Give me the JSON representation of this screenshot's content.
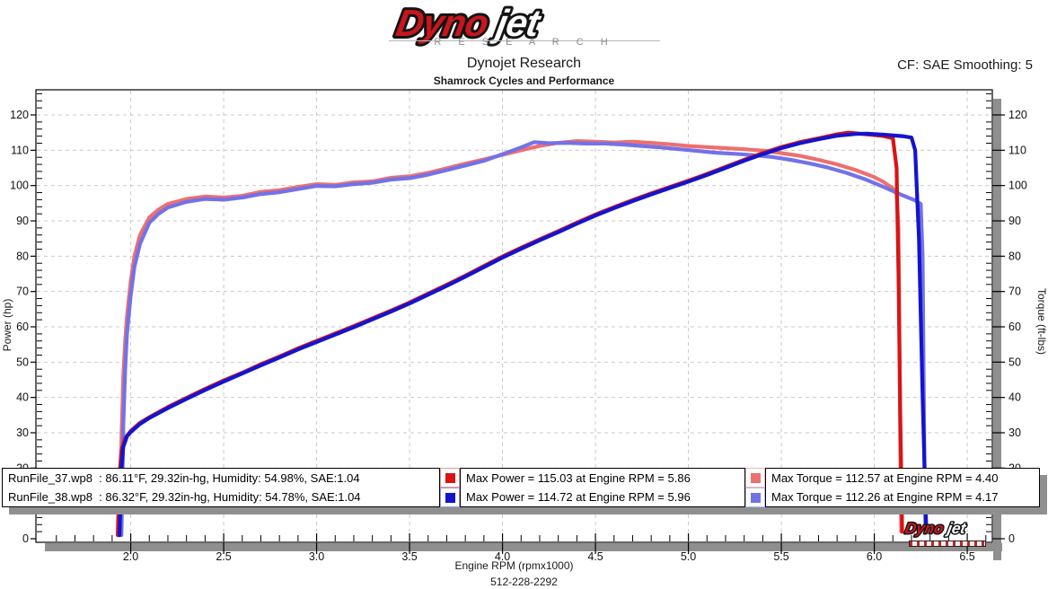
{
  "header": {
    "logo_word_primary": "Dyno",
    "logo_word_secondary": "jet",
    "logo_research": "R E S E A R C H",
    "title": "Dynojet Research",
    "subtitle": "Shamrock Cycles and Performance",
    "cf_label": "CF: SAE Smoothing: 5"
  },
  "colors": {
    "power_run1": "#d81414",
    "power_run2": "#1414cf",
    "torque_run1": "#ee6f6f",
    "torque_run2": "#7272e8",
    "grid": "#c9c9c9",
    "shadow": "#8f8f8f",
    "axis": "#000000",
    "logo_red": "#c8161d"
  },
  "chart_data": {
    "type": "line",
    "title": "Dynojet Research",
    "subtitle": "Shamrock Cycles and Performance",
    "xlabel": "Engine RPM (rpmx1000)",
    "ylabel_left": "Power (hp)",
    "ylabel_right": "Torque (ft-lbs)",
    "xlim": [
      1.5,
      6.65
    ],
    "ylim": [
      0,
      127
    ],
    "x_ticks": [
      2.0,
      2.5,
      3.0,
      3.5,
      4.0,
      4.5,
      5.0,
      5.5,
      6.0,
      6.5
    ],
    "x_tick_labels": [
      "2.0",
      "2.5",
      "3.0",
      "3.5",
      "4.0",
      "4.5",
      "5.0",
      "5.5",
      "6.0",
      "6.5"
    ],
    "y_ticks": [
      0,
      10,
      20,
      30,
      40,
      50,
      60,
      70,
      80,
      90,
      100,
      110,
      120
    ],
    "x_minor_step": 0.1,
    "y_minor_step": 2,
    "grid": "dashed",
    "legend_position": "bottom",
    "series": [
      {
        "name": "Torque RunFile_37",
        "axis": "right",
        "units": "ft-lbs",
        "color": "#ee6f6f",
        "max": {
          "value": 112.57,
          "rpm": 4.4
        },
        "points": [
          [
            1.94,
            1
          ],
          [
            1.945,
            12
          ],
          [
            1.95,
            28
          ],
          [
            1.96,
            46
          ],
          [
            1.97,
            56
          ],
          [
            1.98,
            63
          ],
          [
            2.0,
            73
          ],
          [
            2.02,
            80
          ],
          [
            2.05,
            86
          ],
          [
            2.1,
            91
          ],
          [
            2.15,
            93.2
          ],
          [
            2.2,
            94.8
          ],
          [
            2.3,
            96.2
          ],
          [
            2.4,
            96.9
          ],
          [
            2.5,
            96.6
          ],
          [
            2.6,
            97.1
          ],
          [
            2.7,
            98.2
          ],
          [
            2.8,
            98.7
          ],
          [
            2.9,
            99.6
          ],
          [
            3.0,
            100.4
          ],
          [
            3.1,
            100.2
          ],
          [
            3.2,
            100.9
          ],
          [
            3.3,
            101.2
          ],
          [
            3.4,
            102.2
          ],
          [
            3.5,
            102.6
          ],
          [
            3.6,
            103.6
          ],
          [
            3.7,
            104.9
          ],
          [
            3.8,
            106.2
          ],
          [
            3.9,
            107.4
          ],
          [
            4.0,
            108.7
          ],
          [
            4.1,
            110.0
          ],
          [
            4.2,
            111.2
          ],
          [
            4.3,
            112.1
          ],
          [
            4.4,
            112.6
          ],
          [
            4.5,
            112.4
          ],
          [
            4.6,
            112.2
          ],
          [
            4.7,
            112.4
          ],
          [
            4.8,
            112.1
          ],
          [
            4.9,
            111.7
          ],
          [
            5.0,
            111.2
          ],
          [
            5.1,
            110.9
          ],
          [
            5.2,
            110.6
          ],
          [
            5.3,
            110.3
          ],
          [
            5.4,
            109.9
          ],
          [
            5.5,
            109.2
          ],
          [
            5.6,
            108.4
          ],
          [
            5.7,
            107.3
          ],
          [
            5.8,
            106.0
          ],
          [
            5.9,
            104.4
          ],
          [
            6.0,
            102.4
          ],
          [
            6.05,
            101.0
          ],
          [
            6.1,
            99.2
          ],
          [
            6.12,
            97.5
          ],
          [
            6.13,
            88
          ],
          [
            6.135,
            60
          ],
          [
            6.14,
            25
          ],
          [
            6.145,
            2
          ]
        ]
      },
      {
        "name": "Torque RunFile_38",
        "axis": "right",
        "units": "ft-lbs",
        "color": "#7272e8",
        "max": {
          "value": 112.26,
          "rpm": 4.17
        },
        "points": [
          [
            1.95,
            1
          ],
          [
            1.955,
            14
          ],
          [
            1.96,
            32
          ],
          [
            1.97,
            48
          ],
          [
            1.98,
            58
          ],
          [
            2.0,
            69
          ],
          [
            2.02,
            77
          ],
          [
            2.05,
            83.5
          ],
          [
            2.1,
            89.5
          ],
          [
            2.15,
            92
          ],
          [
            2.2,
            93.8
          ],
          [
            2.3,
            95.4
          ],
          [
            2.4,
            96.2
          ],
          [
            2.5,
            96.0
          ],
          [
            2.6,
            96.6
          ],
          [
            2.7,
            97.6
          ],
          [
            2.8,
            98.1
          ],
          [
            2.9,
            99.0
          ],
          [
            3.0,
            99.9
          ],
          [
            3.1,
            99.8
          ],
          [
            3.2,
            100.4
          ],
          [
            3.3,
            100.8
          ],
          [
            3.4,
            101.7
          ],
          [
            3.5,
            102.1
          ],
          [
            3.6,
            103.1
          ],
          [
            3.7,
            104.4
          ],
          [
            3.8,
            105.7
          ],
          [
            3.9,
            107.0
          ],
          [
            4.0,
            108.9
          ],
          [
            4.1,
            110.8
          ],
          [
            4.17,
            112.3
          ],
          [
            4.25,
            112.0
          ],
          [
            4.35,
            112.1
          ],
          [
            4.45,
            111.9
          ],
          [
            4.55,
            111.9
          ],
          [
            4.65,
            111.6
          ],
          [
            4.75,
            111.2
          ],
          [
            4.85,
            110.8
          ],
          [
            4.95,
            110.3
          ],
          [
            5.05,
            109.8
          ],
          [
            5.15,
            109.3
          ],
          [
            5.25,
            109.0
          ],
          [
            5.35,
            108.6
          ],
          [
            5.45,
            108.1
          ],
          [
            5.55,
            107.3
          ],
          [
            5.65,
            106.3
          ],
          [
            5.75,
            105.1
          ],
          [
            5.85,
            103.6
          ],
          [
            5.95,
            101.8
          ],
          [
            6.05,
            99.6
          ],
          [
            6.15,
            97.3
          ],
          [
            6.22,
            95.8
          ],
          [
            6.25,
            94.8
          ],
          [
            6.26,
            80
          ],
          [
            6.265,
            50
          ],
          [
            6.27,
            18
          ],
          [
            6.275,
            2
          ]
        ]
      },
      {
        "name": "Power RunFile_37",
        "axis": "left",
        "units": "hp",
        "color": "#d81414",
        "max": {
          "value": 115.03,
          "rpm": 5.86
        },
        "points": [
          [
            1.93,
            1
          ],
          [
            1.935,
            10
          ],
          [
            1.94,
            18
          ],
          [
            1.95,
            25
          ],
          [
            1.97,
            28.5
          ],
          [
            2.0,
            30.5
          ],
          [
            2.05,
            32.8
          ],
          [
            2.1,
            34.4
          ],
          [
            2.2,
            37.3
          ],
          [
            2.3,
            39.9
          ],
          [
            2.4,
            42.4
          ],
          [
            2.5,
            44.8
          ],
          [
            2.6,
            47.0
          ],
          [
            2.7,
            49.4
          ],
          [
            2.8,
            51.6
          ],
          [
            2.9,
            53.9
          ],
          [
            3.0,
            56.0
          ],
          [
            3.1,
            58.1
          ],
          [
            3.2,
            60.2
          ],
          [
            3.3,
            62.4
          ],
          [
            3.4,
            64.6
          ],
          [
            3.5,
            66.9
          ],
          [
            3.6,
            69.4
          ],
          [
            3.7,
            71.9
          ],
          [
            3.8,
            74.5
          ],
          [
            3.9,
            77.2
          ],
          [
            4.0,
            79.9
          ],
          [
            4.1,
            82.4
          ],
          [
            4.2,
            84.8
          ],
          [
            4.3,
            87.1
          ],
          [
            4.4,
            89.5
          ],
          [
            4.5,
            91.8
          ],
          [
            4.6,
            93.9
          ],
          [
            4.7,
            95.9
          ],
          [
            4.8,
            97.8
          ],
          [
            4.9,
            99.6
          ],
          [
            5.0,
            101.4
          ],
          [
            5.1,
            103.3
          ],
          [
            5.2,
            105.3
          ],
          [
            5.3,
            107.3
          ],
          [
            5.4,
            109.2
          ],
          [
            5.5,
            110.9
          ],
          [
            5.6,
            112.3
          ],
          [
            5.7,
            113.4
          ],
          [
            5.8,
            114.5
          ],
          [
            5.86,
            115.0
          ],
          [
            5.92,
            114.7
          ],
          [
            6.0,
            114.3
          ],
          [
            6.05,
            114.0
          ],
          [
            6.1,
            113.4
          ],
          [
            6.12,
            105
          ],
          [
            6.13,
            75
          ],
          [
            6.14,
            35
          ],
          [
            6.15,
            2
          ]
        ]
      },
      {
        "name": "Power RunFile_38",
        "axis": "left",
        "units": "hp",
        "color": "#1414cf",
        "max": {
          "value": 114.72,
          "rpm": 5.96
        },
        "points": [
          [
            1.94,
            1
          ],
          [
            1.945,
            10
          ],
          [
            1.95,
            20
          ],
          [
            1.96,
            26
          ],
          [
            1.98,
            29
          ],
          [
            2.0,
            30.2
          ],
          [
            2.05,
            32.5
          ],
          [
            2.1,
            34.2
          ],
          [
            2.2,
            37.0
          ],
          [
            2.3,
            39.6
          ],
          [
            2.4,
            42.1
          ],
          [
            2.5,
            44.5
          ],
          [
            2.6,
            46.8
          ],
          [
            2.7,
            49.1
          ],
          [
            2.8,
            51.3
          ],
          [
            2.9,
            53.6
          ],
          [
            3.0,
            55.7
          ],
          [
            3.1,
            57.8
          ],
          [
            3.2,
            59.9
          ],
          [
            3.3,
            62.1
          ],
          [
            3.4,
            64.3
          ],
          [
            3.5,
            66.6
          ],
          [
            3.6,
            69.1
          ],
          [
            3.7,
            71.6
          ],
          [
            3.8,
            74.2
          ],
          [
            3.9,
            76.9
          ],
          [
            4.0,
            79.6
          ],
          [
            4.1,
            82.1
          ],
          [
            4.2,
            84.5
          ],
          [
            4.3,
            86.8
          ],
          [
            4.4,
            89.2
          ],
          [
            4.5,
            91.5
          ],
          [
            4.6,
            93.6
          ],
          [
            4.7,
            95.6
          ],
          [
            4.8,
            97.5
          ],
          [
            4.9,
            99.3
          ],
          [
            5.0,
            101.1
          ],
          [
            5.1,
            103.0
          ],
          [
            5.2,
            105.0
          ],
          [
            5.3,
            107.0
          ],
          [
            5.4,
            108.9
          ],
          [
            5.5,
            110.6
          ],
          [
            5.6,
            112.0
          ],
          [
            5.7,
            113.1
          ],
          [
            5.8,
            114.1
          ],
          [
            5.9,
            114.6
          ],
          [
            5.96,
            114.7
          ],
          [
            6.05,
            114.4
          ],
          [
            6.15,
            114.0
          ],
          [
            6.2,
            113.6
          ],
          [
            6.22,
            110
          ],
          [
            6.24,
            85
          ],
          [
            6.26,
            40
          ],
          [
            6.28,
            2
          ]
        ]
      }
    ]
  },
  "legend": {
    "runs": [
      {
        "info": "RunFile_37.wp8  : 86.11°F, 29.32in-hg, Humidity: 54.98%, SAE:1.04",
        "max_power": "Max Power = 115.03 at Engine RPM = 5.86",
        "max_torque": "Max Torque = 112.57 at Engine RPM = 4.40",
        "power_color": "#d81414",
        "torque_color": "#ee6f6f",
        "power_cell_border": "#ef9a9a",
        "torque_cell_border": "#f4b8b8"
      },
      {
        "info": "RunFile_38.wp8  : 86.32°F, 29.32in-hg, Humidity: 54.78%, SAE:1.04",
        "max_power": "Max Power = 114.72 at Engine RPM = 5.96",
        "max_torque": "Max Torque = 112.26 at Engine RPM = 4.17",
        "power_color": "#1414cf",
        "torque_color": "#7272e8",
        "power_cell_border": "#9a9ae4",
        "torque_cell_border": "#b8b8f0"
      }
    ]
  },
  "watermark": {
    "word_primary": "Dyno",
    "word_secondary": "jet"
  },
  "footer": {
    "phone": "512-228-2292"
  }
}
